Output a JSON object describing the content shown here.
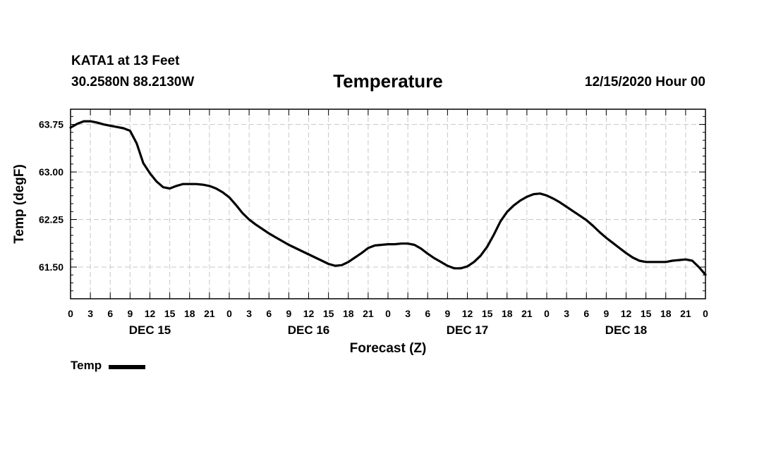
{
  "header": {
    "station": "KATA1 at 13 Feet",
    "coords": "30.2580N 88.2130W",
    "title": "Temperature",
    "run_time": "12/15/2020 Hour 00"
  },
  "legend": {
    "label": "Temp",
    "color": "#000000"
  },
  "chart_data": {
    "type": "line",
    "title": "Temperature",
    "xlabel": "Forecast (Z)",
    "ylabel": "Temp (degF)",
    "xlim": [
      0,
      96
    ],
    "ylim": [
      61.0,
      63.99
    ],
    "x_units": "hours from 12/15/2020 00Z",
    "x_tick_values": [
      0,
      3,
      6,
      9,
      12,
      15,
      18,
      21,
      24,
      27,
      30,
      33,
      36,
      39,
      42,
      45,
      48,
      51,
      54,
      57,
      60,
      63,
      66,
      69,
      72,
      75,
      78,
      81,
      84,
      87,
      90,
      93,
      96
    ],
    "x_tick_labels": [
      "0",
      "3",
      "6",
      "9",
      "12",
      "15",
      "18",
      "21",
      "0",
      "3",
      "6",
      "9",
      "12",
      "15",
      "18",
      "21",
      "0",
      "3",
      "6",
      "9",
      "12",
      "15",
      "18",
      "21",
      "0",
      "3",
      "6",
      "9",
      "12",
      "15",
      "18",
      "21",
      "0"
    ],
    "day_labels": [
      {
        "hour": 12,
        "label": "DEC 15"
      },
      {
        "hour": 36,
        "label": "DEC 16"
      },
      {
        "hour": 60,
        "label": "DEC 17"
      },
      {
        "hour": 84,
        "label": "DEC 18"
      }
    ],
    "y_tick_values": [
      63.75,
      63.0,
      62.25,
      61.5
    ],
    "y_tick_labels": [
      "63.75",
      "63.00",
      "62.25",
      "61.50"
    ],
    "grid": true,
    "legend_position": "bottom-left",
    "series": [
      {
        "name": "Temp",
        "color": "#000000",
        "x": [
          0,
          1,
          2,
          3,
          4,
          5,
          6,
          7,
          8,
          9,
          10,
          11,
          12,
          13,
          14,
          15,
          16,
          17,
          18,
          19,
          20,
          21,
          22,
          23,
          24,
          25,
          26,
          27,
          28,
          29,
          30,
          31,
          32,
          33,
          34,
          35,
          36,
          37,
          38,
          39,
          40,
          41,
          42,
          43,
          44,
          45,
          46,
          47,
          48,
          49,
          50,
          51,
          52,
          53,
          54,
          55,
          56,
          57,
          58,
          59,
          60,
          61,
          62,
          63,
          64,
          65,
          66,
          67,
          68,
          69,
          70,
          71,
          72,
          73,
          74,
          75,
          76,
          77,
          78,
          79,
          80,
          81,
          82,
          83,
          84,
          85,
          86,
          87,
          88,
          89,
          90,
          91,
          92,
          93,
          94,
          95,
          96
        ],
        "values": [
          63.7,
          63.76,
          63.8,
          63.8,
          63.78,
          63.75,
          63.73,
          63.71,
          63.69,
          63.65,
          63.45,
          63.14,
          62.98,
          62.85,
          62.76,
          62.74,
          62.78,
          62.81,
          62.81,
          62.81,
          62.8,
          62.78,
          62.74,
          62.68,
          62.6,
          62.48,
          62.35,
          62.25,
          62.17,
          62.1,
          62.03,
          61.97,
          61.91,
          61.85,
          61.8,
          61.75,
          61.7,
          61.65,
          61.6,
          61.55,
          61.52,
          61.53,
          61.58,
          61.65,
          61.72,
          61.8,
          61.84,
          61.85,
          61.86,
          61.86,
          61.87,
          61.87,
          61.85,
          61.79,
          61.71,
          61.64,
          61.58,
          61.52,
          61.48,
          61.48,
          61.51,
          61.58,
          61.68,
          61.82,
          62.01,
          62.22,
          62.37,
          62.47,
          62.55,
          62.61,
          62.65,
          62.66,
          62.63,
          62.58,
          62.52,
          62.45,
          62.38,
          62.31,
          62.24,
          62.15,
          62.05,
          61.96,
          61.88,
          61.8,
          61.72,
          61.65,
          61.6,
          61.58,
          61.58,
          61.58,
          61.58,
          61.6,
          61.61,
          61.62,
          61.6,
          61.5,
          61.38
        ]
      }
    ]
  }
}
